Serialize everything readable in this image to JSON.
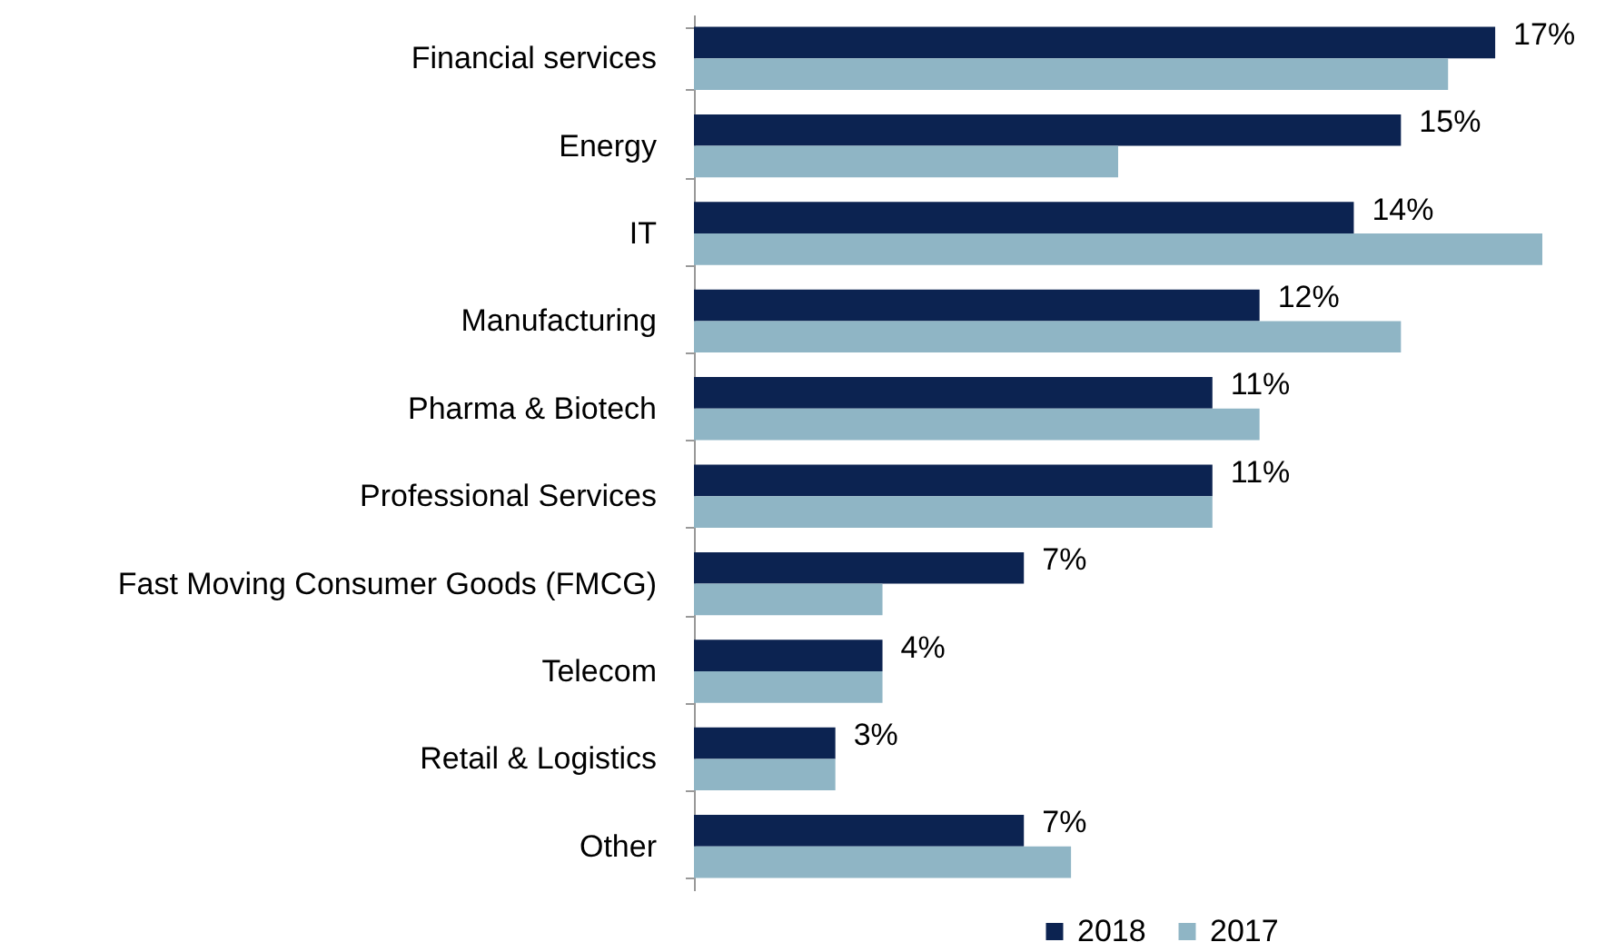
{
  "chart_data": {
    "type": "bar",
    "orientation": "horizontal",
    "categories": [
      "Financial services",
      "Energy",
      "IT",
      "Manufacturing",
      "Pharma & Biotech",
      "Professional Services",
      "Fast Moving Consumer Goods (FMCG)",
      "Telecom",
      "Retail & Logistics",
      "Other"
    ],
    "series": [
      {
        "name": "2018",
        "color": "#0c2351",
        "values": [
          17,
          15,
          14,
          12,
          11,
          11,
          7,
          4,
          3,
          7
        ],
        "value_labels": [
          "17%",
          "15%",
          "14%",
          "12%",
          "11%",
          "11%",
          "7%",
          "4%",
          "3%",
          "7%"
        ]
      },
      {
        "name": "2017",
        "color": "#8fb5c5",
        "values": [
          16,
          9,
          18,
          15,
          12,
          11,
          4,
          4,
          3,
          8
        ]
      }
    ],
    "legend": "bottom"
  }
}
